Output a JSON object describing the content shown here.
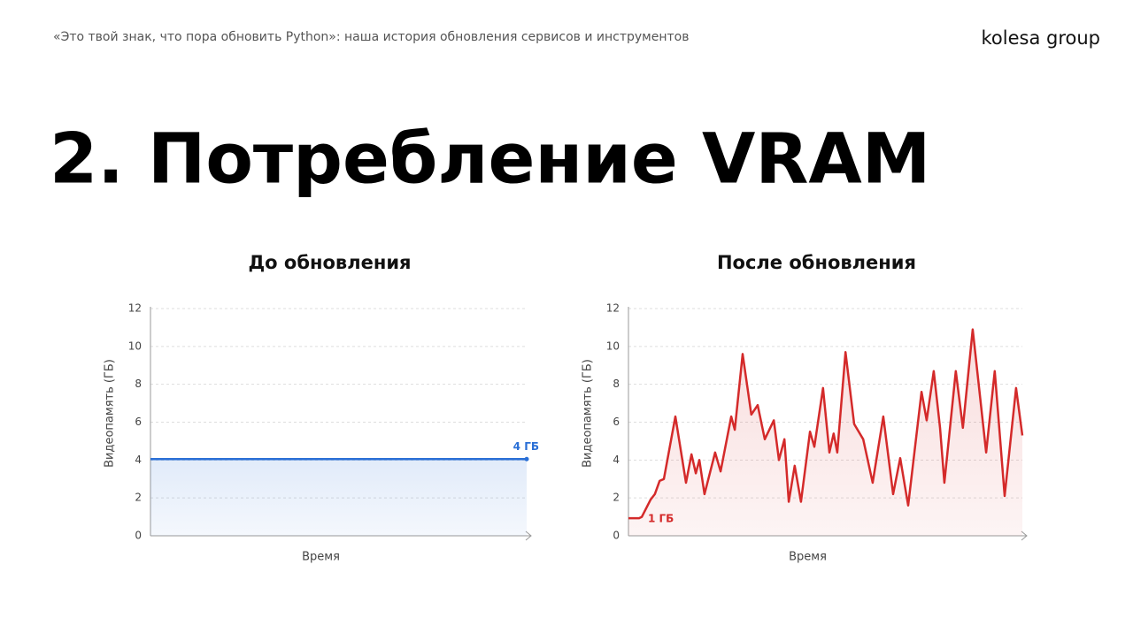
{
  "header": {
    "caption": "«Это твой знак, что пора обновить Python»: наша история обновления сервисов и инструментов",
    "logo": "kolesa group"
  },
  "title": "2. Потребление VRAM",
  "chart_data": [
    {
      "type": "line",
      "title": "До обновления",
      "xlabel": "Время",
      "ylabel": "Видеопамять (ГБ)",
      "x": [
        0,
        100
      ],
      "values": [
        4.05,
        4.05
      ],
      "color": "#2a6fd6",
      "annotation": "4 ГБ",
      "xlim": [
        0,
        100
      ],
      "ylim": [
        0,
        12
      ],
      "yticks": [
        0,
        2,
        4,
        6,
        8,
        10,
        12
      ],
      "grid": true
    },
    {
      "type": "line",
      "title": "После обновления",
      "xlabel": "Время",
      "ylabel": "Видеопамять (ГБ)",
      "x": [
        0,
        2.7,
        3.4,
        5.6,
        6.7,
        7.9,
        9.0,
        11.9,
        14.6,
        16.0,
        17.1,
        18.0,
        19.3,
        22.0,
        23.4,
        26.1,
        27.0,
        29.0,
        31.2,
        32.8,
        34.6,
        36.9,
        38.2,
        39.6,
        40.7,
        42.2,
        43.8,
        46.1,
        47.2,
        49.4,
        51.0,
        52.1,
        53.0,
        55.1,
        57.3,
        59.6,
        62.0,
        64.7,
        67.2,
        69.0,
        71.0,
        74.4,
        75.7,
        77.5,
        79.1,
        80.2,
        83.1,
        84.9,
        87.4,
        90.8,
        93.0,
        95.5,
        98.4,
        100
      ],
      "values": [
        0.93,
        0.93,
        1.0,
        1.9,
        2.2,
        2.9,
        3.0,
        6.3,
        2.8,
        4.3,
        3.3,
        4.0,
        2.2,
        4.4,
        3.4,
        6.3,
        5.6,
        9.6,
        6.4,
        6.9,
        5.1,
        6.1,
        4.0,
        5.1,
        1.8,
        3.7,
        1.8,
        5.5,
        4.7,
        7.8,
        4.4,
        5.4,
        4.4,
        9.7,
        5.9,
        5.1,
        2.8,
        6.3,
        2.2,
        4.1,
        1.6,
        7.6,
        6.1,
        8.7,
        5.7,
        2.8,
        8.7,
        5.7,
        10.9,
        4.4,
        8.7,
        2.1,
        7.8,
        5.3
      ],
      "color": "#d42a2a",
      "annotation": "1 ГБ",
      "xlim": [
        0,
        100
      ],
      "ylim": [
        0,
        12
      ],
      "yticks": [
        0,
        2,
        4,
        6,
        8,
        10,
        12
      ],
      "grid": true
    }
  ]
}
